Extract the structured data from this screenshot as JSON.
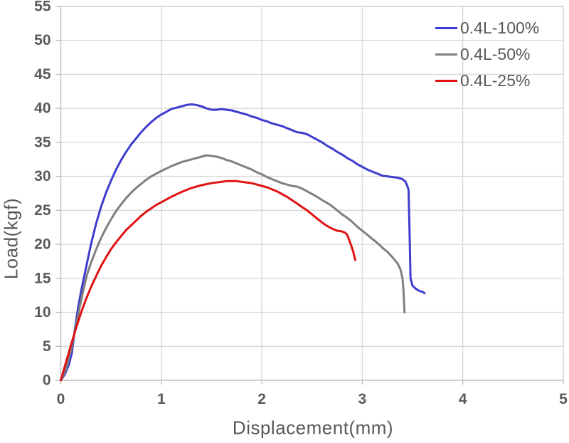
{
  "chart_data": {
    "type": "line",
    "title": "",
    "xlabel": "Displacement(mm)",
    "ylabel": "Load(kgf)",
    "xlim": [
      0,
      5
    ],
    "ylim": [
      0,
      55
    ],
    "x_ticks": [
      0,
      1,
      2,
      3,
      4,
      5
    ],
    "y_ticks": [
      0,
      5,
      10,
      15,
      20,
      25,
      30,
      35,
      40,
      45,
      50,
      55
    ],
    "grid": true,
    "legend_position": "top-right-inside",
    "colors": {
      "text": "#595959",
      "gridline": "#D9D9D9",
      "axis": "#BFBFBF",
      "background": "#FFFFFF"
    },
    "series": [
      {
        "name": "0.4L-100%",
        "color": "#3D3DCE",
        "points": [
          [
            0,
            0
          ],
          [
            0.04,
            0.9
          ],
          [
            0.08,
            2.3
          ],
          [
            0.11,
            4
          ],
          [
            0.14,
            7.5
          ],
          [
            0.17,
            10.5
          ],
          [
            0.2,
            13
          ],
          [
            0.25,
            16.5
          ],
          [
            0.3,
            20
          ],
          [
            0.35,
            23
          ],
          [
            0.4,
            25.5
          ],
          [
            0.45,
            27.6
          ],
          [
            0.5,
            29.4
          ],
          [
            0.55,
            31
          ],
          [
            0.6,
            32.4
          ],
          [
            0.65,
            33.6
          ],
          [
            0.7,
            34.7
          ],
          [
            0.75,
            35.6
          ],
          [
            0.8,
            36.5
          ],
          [
            0.85,
            37.3
          ],
          [
            0.9,
            38
          ],
          [
            0.95,
            38.6
          ],
          [
            1,
            39.1
          ],
          [
            1.05,
            39.5
          ],
          [
            1.1,
            39.9
          ],
          [
            1.15,
            40.1
          ],
          [
            1.2,
            40.3
          ],
          [
            1.25,
            40.5
          ],
          [
            1.3,
            40.6
          ],
          [
            1.35,
            40.5
          ],
          [
            1.4,
            40.3
          ],
          [
            1.45,
            40
          ],
          [
            1.5,
            39.8
          ],
          [
            1.55,
            39.8
          ],
          [
            1.6,
            39.9
          ],
          [
            1.65,
            39.8
          ],
          [
            1.7,
            39.7
          ],
          [
            1.75,
            39.5
          ],
          [
            1.8,
            39.3
          ],
          [
            1.85,
            39.1
          ],
          [
            1.9,
            38.8
          ],
          [
            1.95,
            38.6
          ],
          [
            2,
            38.3
          ],
          [
            2.05,
            38.1
          ],
          [
            2.1,
            37.8
          ],
          [
            2.15,
            37.6
          ],
          [
            2.2,
            37.4
          ],
          [
            2.25,
            37.1
          ],
          [
            2.3,
            36.8
          ],
          [
            2.35,
            36.5
          ],
          [
            2.4,
            36.4
          ],
          [
            2.45,
            36.2
          ],
          [
            2.5,
            35.8
          ],
          [
            2.55,
            35.4
          ],
          [
            2.6,
            35
          ],
          [
            2.65,
            34.5
          ],
          [
            2.7,
            34.1
          ],
          [
            2.75,
            33.6
          ],
          [
            2.8,
            33.2
          ],
          [
            2.85,
            32.7
          ],
          [
            2.9,
            32.3
          ],
          [
            2.95,
            31.8
          ],
          [
            3,
            31.4
          ],
          [
            3.05,
            31
          ],
          [
            3.1,
            30.7
          ],
          [
            3.15,
            30.4
          ],
          [
            3.2,
            30.1
          ],
          [
            3.25,
            30
          ],
          [
            3.3,
            29.9
          ],
          [
            3.35,
            29.8
          ],
          [
            3.4,
            29.6
          ],
          [
            3.43,
            29.2
          ],
          [
            3.45,
            28.5
          ],
          [
            3.46,
            28
          ],
          [
            3.47,
            22
          ],
          [
            3.48,
            15
          ],
          [
            3.5,
            13.9
          ],
          [
            3.53,
            13.5
          ],
          [
            3.56,
            13.2
          ],
          [
            3.6,
            13
          ],
          [
            3.62,
            12.8
          ]
        ]
      },
      {
        "name": "0.4L-50%",
        "color": "#7F7F7F",
        "points": [
          [
            0,
            0
          ],
          [
            0.05,
            1.6
          ],
          [
            0.1,
            4.3
          ],
          [
            0.14,
            7.2
          ],
          [
            0.18,
            10.2
          ],
          [
            0.22,
            13
          ],
          [
            0.26,
            15.5
          ],
          [
            0.3,
            17.3
          ],
          [
            0.35,
            19.2
          ],
          [
            0.4,
            20.9
          ],
          [
            0.45,
            22.4
          ],
          [
            0.5,
            23.7
          ],
          [
            0.55,
            24.9
          ],
          [
            0.6,
            25.9
          ],
          [
            0.65,
            26.8
          ],
          [
            0.7,
            27.6
          ],
          [
            0.75,
            28.3
          ],
          [
            0.8,
            28.9
          ],
          [
            0.85,
            29.5
          ],
          [
            0.9,
            30
          ],
          [
            0.95,
            30.4
          ],
          [
            1,
            30.8
          ],
          [
            1.1,
            31.5
          ],
          [
            1.2,
            32.1
          ],
          [
            1.3,
            32.5
          ],
          [
            1.4,
            32.9
          ],
          [
            1.45,
            33.1
          ],
          [
            1.5,
            33
          ],
          [
            1.55,
            32.9
          ],
          [
            1.6,
            32.7
          ],
          [
            1.65,
            32.4
          ],
          [
            1.7,
            32.2
          ],
          [
            1.75,
            31.9
          ],
          [
            1.8,
            31.6
          ],
          [
            1.85,
            31.3
          ],
          [
            1.9,
            31
          ],
          [
            1.95,
            30.6
          ],
          [
            2,
            30.3
          ],
          [
            2.05,
            29.9
          ],
          [
            2.1,
            29.6
          ],
          [
            2.15,
            29.3
          ],
          [
            2.2,
            29
          ],
          [
            2.25,
            28.8
          ],
          [
            2.3,
            28.6
          ],
          [
            2.35,
            28.5
          ],
          [
            2.4,
            28.2
          ],
          [
            2.45,
            27.8
          ],
          [
            2.5,
            27.4
          ],
          [
            2.55,
            27
          ],
          [
            2.6,
            26.5
          ],
          [
            2.65,
            26.1
          ],
          [
            2.7,
            25.6
          ],
          [
            2.75,
            25
          ],
          [
            2.8,
            24.4
          ],
          [
            2.85,
            23.9
          ],
          [
            2.9,
            23.3
          ],
          [
            2.95,
            22.6
          ],
          [
            3,
            22
          ],
          [
            3.05,
            21.4
          ],
          [
            3.1,
            20.8
          ],
          [
            3.15,
            20.2
          ],
          [
            3.2,
            19.5
          ],
          [
            3.25,
            18.9
          ],
          [
            3.3,
            18.1
          ],
          [
            3.35,
            17.2
          ],
          [
            3.38,
            16.3
          ],
          [
            3.4,
            15
          ],
          [
            3.41,
            13.2
          ],
          [
            3.42,
            10
          ]
        ]
      },
      {
        "name": "0.4L-25%",
        "color": "#E01212",
        "points": [
          [
            0,
            0
          ],
          [
            0.05,
            2.6
          ],
          [
            0.1,
            5.1
          ],
          [
            0.15,
            7.6
          ],
          [
            0.2,
            9.9
          ],
          [
            0.25,
            11.9
          ],
          [
            0.3,
            13.7
          ],
          [
            0.35,
            15.3
          ],
          [
            0.4,
            16.8
          ],
          [
            0.45,
            18.1
          ],
          [
            0.5,
            19.3
          ],
          [
            0.55,
            20.3
          ],
          [
            0.6,
            21.2
          ],
          [
            0.65,
            22.1
          ],
          [
            0.7,
            22.8
          ],
          [
            0.75,
            23.5
          ],
          [
            0.8,
            24.2
          ],
          [
            0.85,
            24.8
          ],
          [
            0.9,
            25.3
          ],
          [
            0.95,
            25.8
          ],
          [
            1,
            26.2
          ],
          [
            1.1,
            27
          ],
          [
            1.2,
            27.7
          ],
          [
            1.3,
            28.3
          ],
          [
            1.4,
            28.7
          ],
          [
            1.5,
            29
          ],
          [
            1.55,
            29.1
          ],
          [
            1.6,
            29.2
          ],
          [
            1.65,
            29.3
          ],
          [
            1.7,
            29.3
          ],
          [
            1.75,
            29.3
          ],
          [
            1.8,
            29.2
          ],
          [
            1.85,
            29.1
          ],
          [
            1.9,
            29
          ],
          [
            1.95,
            28.8
          ],
          [
            2,
            28.6
          ],
          [
            2.05,
            28.4
          ],
          [
            2.1,
            28.1
          ],
          [
            2.15,
            27.8
          ],
          [
            2.2,
            27.4
          ],
          [
            2.25,
            27
          ],
          [
            2.3,
            26.5
          ],
          [
            2.35,
            26
          ],
          [
            2.4,
            25.5
          ],
          [
            2.45,
            25
          ],
          [
            2.5,
            24.4
          ],
          [
            2.55,
            23.8
          ],
          [
            2.6,
            23.2
          ],
          [
            2.65,
            22.7
          ],
          [
            2.7,
            22.3
          ],
          [
            2.75,
            22
          ],
          [
            2.8,
            21.9
          ],
          [
            2.83,
            21.7
          ],
          [
            2.85,
            21.4
          ],
          [
            2.87,
            20.6
          ],
          [
            2.89,
            19.8
          ],
          [
            2.91,
            18.9
          ],
          [
            2.93,
            17.7
          ]
        ]
      }
    ]
  }
}
